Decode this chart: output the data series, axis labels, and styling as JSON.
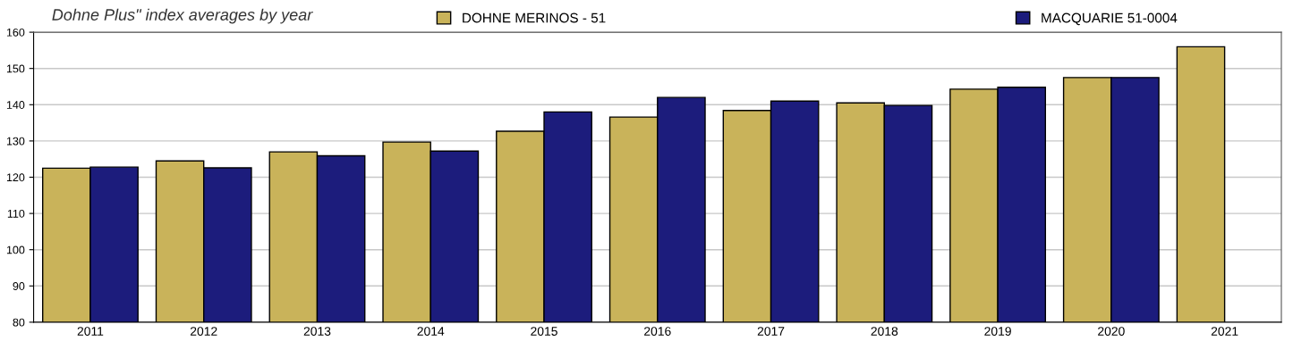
{
  "chart_data": {
    "type": "bar",
    "title": "Dohne Plus\" index averages by year",
    "categories": [
      "2011",
      "2012",
      "2013",
      "2014",
      "2015",
      "2016",
      "2017",
      "2018",
      "2019",
      "2020",
      "2021"
    ],
    "series": [
      {
        "name": "DOHNE MERINOS - 51",
        "color": "#c9b35a",
        "values": [
          122.5,
          124.5,
          127,
          129.7,
          132.7,
          136.6,
          138.4,
          140.5,
          144.3,
          147.5,
          156
        ]
      },
      {
        "name": "MACQUARIE 51-0004",
        "color": "#1c1c7c",
        "values": [
          122.8,
          122.6,
          125.9,
          127.2,
          138,
          142,
          141,
          139.8,
          144.8,
          147.5,
          null
        ]
      }
    ],
    "ylim": [
      80,
      160
    ],
    "yticks": [
      80,
      90,
      100,
      110,
      120,
      130,
      140,
      150,
      160
    ],
    "grid": "y",
    "legend": "top"
  }
}
